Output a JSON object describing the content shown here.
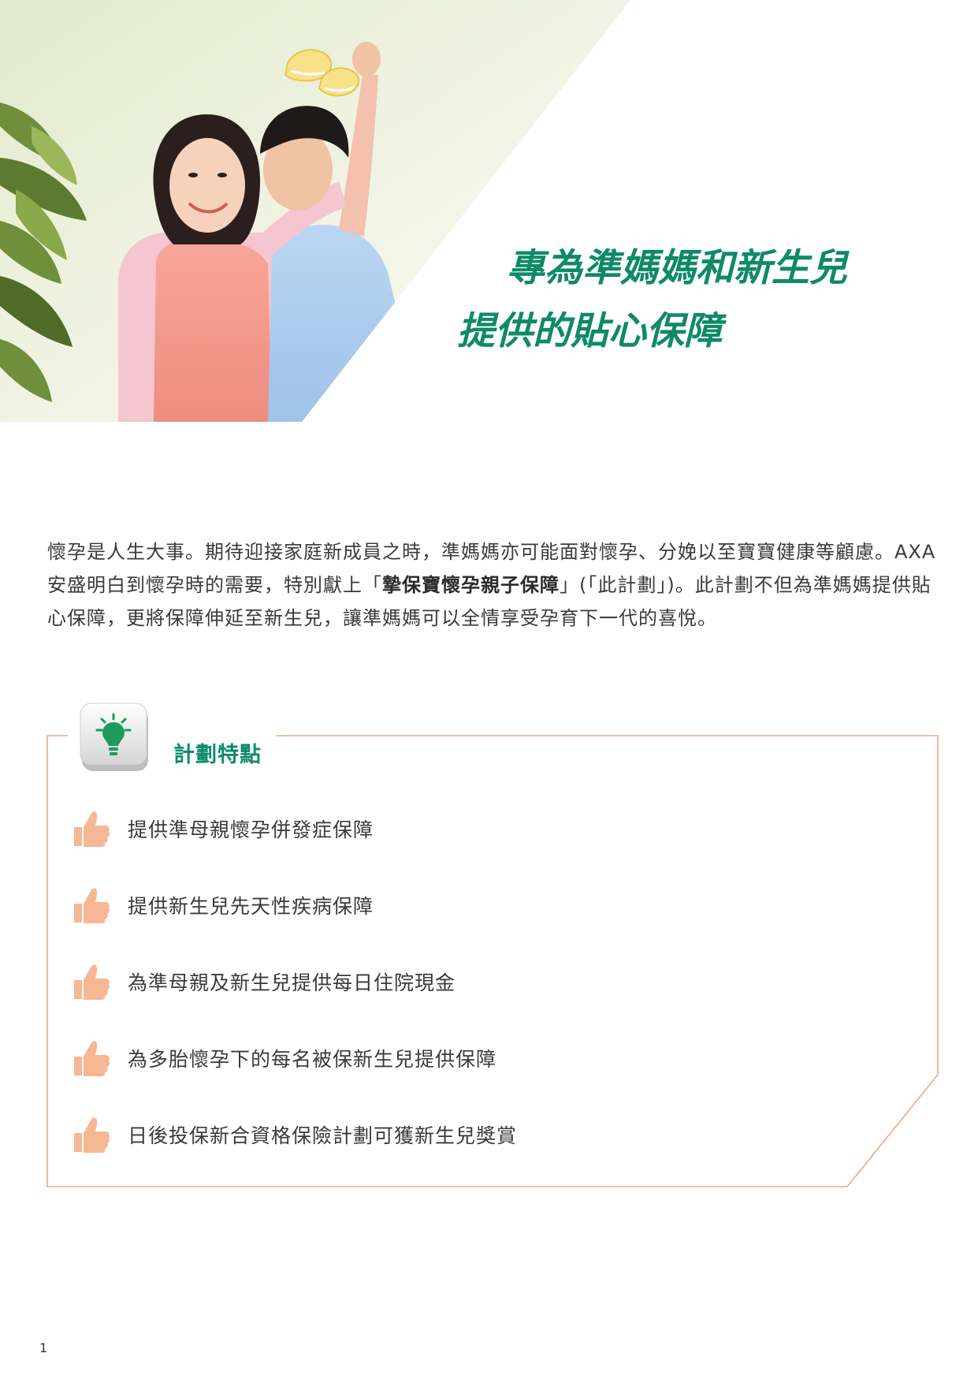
{
  "hero": {
    "headline_line1": "專為準媽媽和新生兒",
    "headline_line2": "提供的貼心保障"
  },
  "intro": {
    "text_before": "懷孕是人生大事。期待迎接家庭新成員之時，準媽媽亦可能面對懷孕、分娩以至寶寶健康等顧慮。AXA安盛明白到懷孕時的需要，特別獻上「",
    "plan_name": "摯保寶懷孕親子保障",
    "text_after": "」(「此計劃」)。此計劃不但為準媽媽提供貼心保障，更將保障伸延至新生兒，讓準媽媽可以全情享受孕育下一代的喜悅。"
  },
  "features": {
    "title": "計劃特點",
    "title_icon": "lightbulb-key-icon",
    "bullet_icon": "thumbs-up-icon",
    "items": [
      {
        "label": "提供準母親懷孕併發症保障"
      },
      {
        "label": "提供新生兒先天性疾病保障"
      },
      {
        "label": "為準母親及新生兒提供每日住院現金"
      },
      {
        "label": "為多胎懷孕下的每名被保新生兒提供保障"
      },
      {
        "label": "日後投保新合資格保險計劃可獲新生兒獎賞"
      }
    ]
  },
  "page": {
    "number": "1"
  },
  "colors": {
    "brand_green": "#0f8a69",
    "frame_orange": "#f0a67e",
    "thumb_peach": "#f6b894",
    "body_text": "#3a3a3a"
  }
}
